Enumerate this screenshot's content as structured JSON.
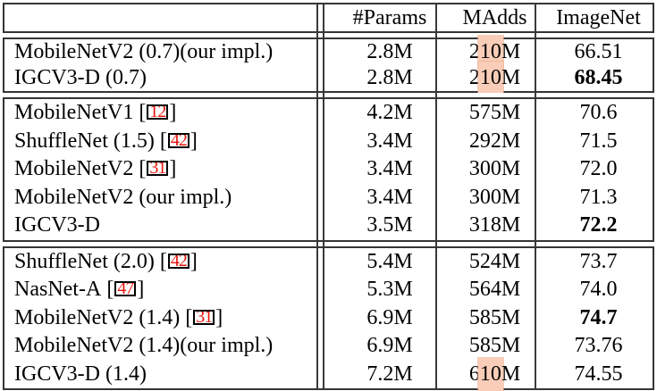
{
  "header": {
    "columns": [
      "#Params",
      "MAdds",
      "ImageNet"
    ]
  },
  "cite_brackets": {
    "open": "[",
    "close": "]"
  },
  "colors": {
    "citation_red": "#e8140c",
    "highlight_fill": "#f9cdb8",
    "rule_color": "#3a3a3a"
  },
  "sections": [
    {
      "rows": [
        {
          "model": "MobileNetV2 (0.7)(our impl.)",
          "params": "2.8M",
          "madds": {
            "pre": "2",
            "highlight": "10",
            "post": "M"
          },
          "imagenet": "66.51",
          "imagenet_bold": false
        },
        {
          "model": "IGCV3-D (0.7)",
          "params": "2.8M",
          "madds": {
            "pre": "2",
            "highlight": "10",
            "post": "M"
          },
          "imagenet": "68.45",
          "imagenet_bold": true
        }
      ]
    },
    {
      "rows": [
        {
          "model": "MobileNetV1",
          "cite": "12",
          "params": "4.2M",
          "madds": {
            "pre": "575M"
          },
          "imagenet": "70.6",
          "imagenet_bold": false
        },
        {
          "model": "ShuffleNet (1.5)",
          "cite": "42",
          "params": "3.4M",
          "madds": {
            "pre": "292M"
          },
          "imagenet": "71.5",
          "imagenet_bold": false
        },
        {
          "model": "MobileNetV2",
          "cite": "31",
          "params": "3.4M",
          "madds": {
            "pre": "300M"
          },
          "imagenet": "72.0",
          "imagenet_bold": false
        },
        {
          "model": "MobileNetV2 (our impl.)",
          "params": "3.4M",
          "madds": {
            "pre": "300M"
          },
          "imagenet": "71.3",
          "imagenet_bold": false
        },
        {
          "model": "IGCV3-D",
          "params": "3.5M",
          "madds": {
            "pre": "318M"
          },
          "imagenet": "72.2",
          "imagenet_bold": true
        }
      ]
    },
    {
      "rows": [
        {
          "model": "ShuffleNet (2.0)",
          "cite": "42",
          "params": "5.4M",
          "madds": {
            "pre": "524M"
          },
          "imagenet": "73.7",
          "imagenet_bold": false
        },
        {
          "model": "NasNet-A",
          "cite": "47",
          "params": "5.3M",
          "madds": {
            "pre": "564M"
          },
          "imagenet": "74.0",
          "imagenet_bold": false
        },
        {
          "model": "MobileNetV2 (1.4)",
          "cite": "31",
          "params": "6.9M",
          "madds": {
            "pre": "585M"
          },
          "imagenet": "74.7",
          "imagenet_bold": true
        },
        {
          "model": "MobileNetV2 (1.4)(our impl.)",
          "params": "6.9M",
          "madds": {
            "pre": "585M"
          },
          "imagenet": "73.76",
          "imagenet_bold": false
        },
        {
          "model": "IGCV3-D (1.4)",
          "params": "7.2M",
          "madds": {
            "pre": "6",
            "highlight": "10",
            "post": "M"
          },
          "imagenet": "74.55",
          "imagenet_bold": false
        }
      ]
    }
  ]
}
